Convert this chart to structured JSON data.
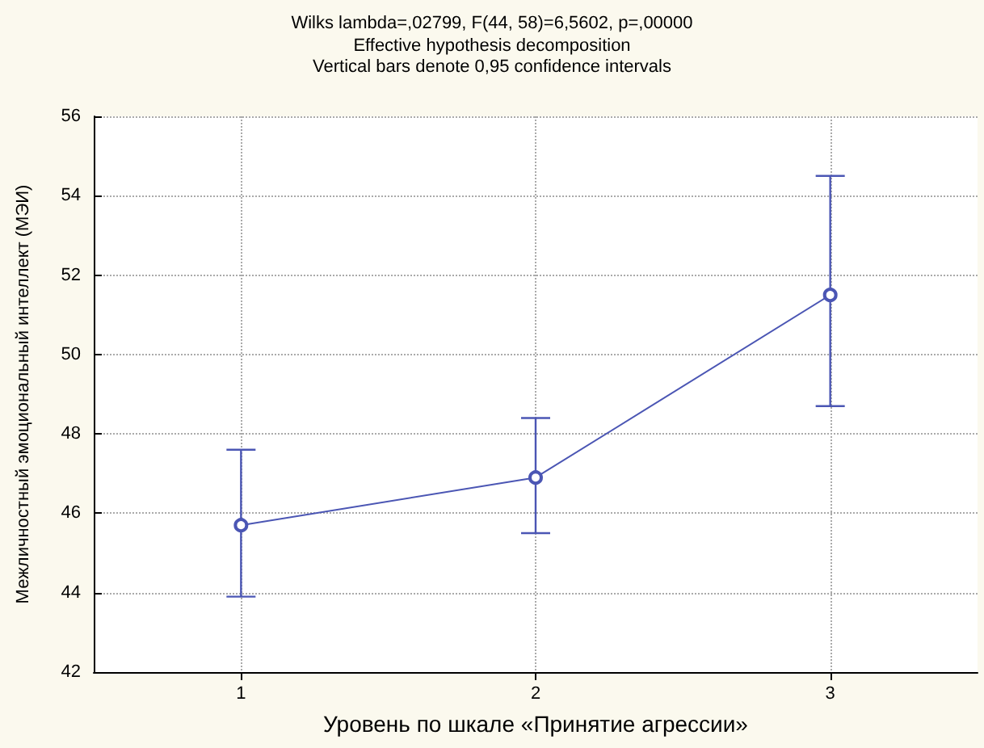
{
  "chart_data": {
    "type": "line",
    "title": "Wilks lambda=,02799, F(44, 58)=6,5602, p=,00000",
    "subtitle": "Effective hypothesis decomposition\nVertical bars denote 0,95 confidence intervals",
    "xlabel": "Уровень по шкале «Принятие агрессии»",
    "ylabel": "Межличностный эмоциональный интеллект (МЭИ)",
    "categories": [
      "1",
      "2",
      "3"
    ],
    "series": [
      {
        "color": "#4b56b4",
        "values": [
          45.7,
          46.9,
          51.5
        ],
        "errors": [
          [
            43.9,
            47.6
          ],
          [
            45.5,
            48.4
          ],
          [
            48.7,
            54.5
          ]
        ]
      }
    ],
    "ylim": [
      42,
      56
    ],
    "yticks": [
      42,
      44,
      46,
      48,
      50,
      52,
      54,
      56
    ],
    "grid": true,
    "marker": "circle",
    "line_style": "solid"
  }
}
